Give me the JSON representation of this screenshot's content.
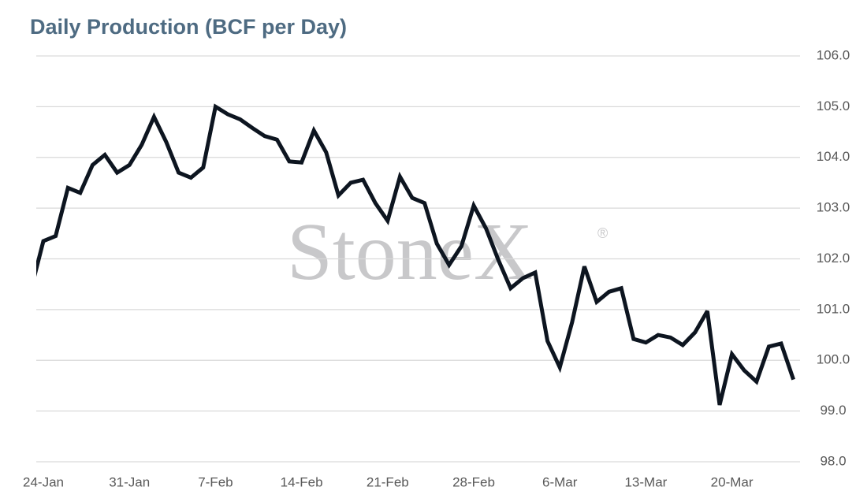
{
  "chart_data": {
    "type": "line",
    "title": "Daily Production (BCF per Day)",
    "watermark": "StoneX",
    "watermark_mark": "®",
    "categories": [
      null,
      "24-Jan",
      null,
      null,
      null,
      null,
      null,
      null,
      "31-Jan",
      null,
      null,
      null,
      null,
      null,
      null,
      "7-Feb",
      null,
      null,
      null,
      null,
      null,
      null,
      "14-Feb",
      null,
      null,
      null,
      null,
      null,
      null,
      "21-Feb",
      null,
      null,
      null,
      null,
      null,
      null,
      "28-Feb",
      null,
      null,
      null,
      null,
      null,
      null,
      "6-Mar",
      null,
      null,
      null,
      null,
      null,
      null,
      "13-Mar",
      null,
      null,
      null,
      null,
      null,
      null,
      "20-Mar",
      null,
      null,
      null,
      null,
      null
    ],
    "series": [
      {
        "name": "Daily Production",
        "color": "#0d1520",
        "values": [
          101.4,
          102.35,
          102.45,
          103.4,
          103.3,
          103.85,
          104.05,
          103.7,
          103.85,
          104.25,
          104.8,
          104.3,
          103.7,
          103.6,
          103.8,
          105.0,
          104.85,
          104.75,
          104.58,
          104.42,
          104.35,
          103.92,
          103.9,
          104.53,
          104.1,
          103.25,
          103.5,
          103.56,
          103.1,
          102.75,
          103.62,
          103.2,
          103.1,
          102.3,
          101.88,
          102.25,
          103.05,
          102.6,
          101.98,
          101.42,
          101.62,
          101.73,
          100.38,
          99.86,
          100.75,
          101.85,
          101.15,
          101.35,
          101.42,
          100.42,
          100.35,
          100.5,
          100.45,
          100.3,
          100.55,
          100.97,
          99.12,
          100.12,
          99.8,
          99.58,
          100.27,
          100.33,
          99.62
        ]
      }
    ],
    "ylim": [
      98,
      106
    ],
    "yticks": [
      {
        "value": 98,
        "label": "98.0"
      },
      {
        "value": 99,
        "label": "99.0"
      },
      {
        "value": 100,
        "label": "100.0"
      },
      {
        "value": 101,
        "label": "101.0"
      },
      {
        "value": 102,
        "label": "102.0"
      },
      {
        "value": 103,
        "label": "103.0"
      },
      {
        "value": 104,
        "label": "104.0"
      },
      {
        "value": 105,
        "label": "105.0"
      },
      {
        "value": 106,
        "label": "106.0"
      }
    ],
    "grid": true
  }
}
